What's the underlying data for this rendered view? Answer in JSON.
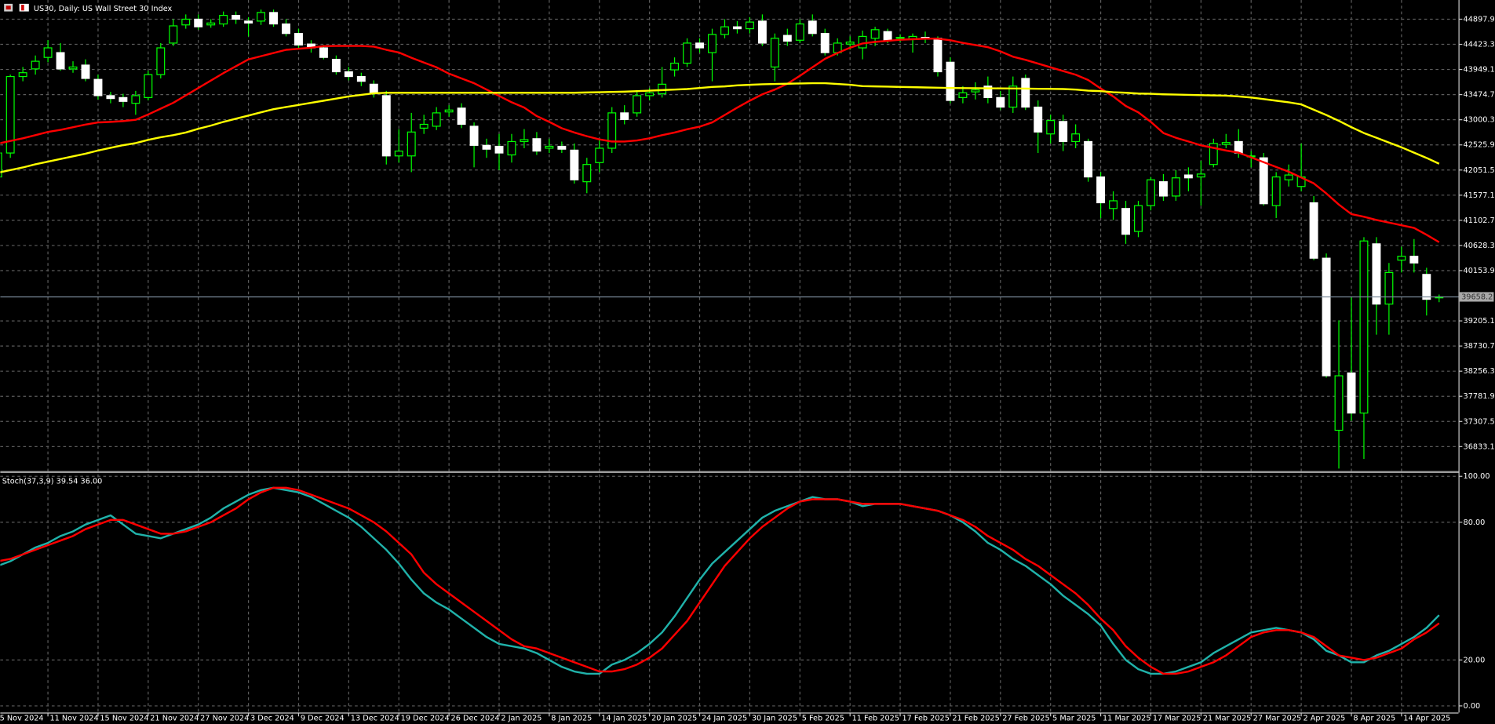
{
  "chart_data": [
    {
      "type": "candlestick",
      "title": "US30, Daily: US Wall Street 30 Index",
      "categories": [
        "5 Nov 2024",
        null,
        null,
        null,
        "11 Nov 2024",
        null,
        null,
        null,
        "15 Nov 2024",
        null,
        null,
        null,
        "21 Nov 2024",
        null,
        null,
        null,
        "27 Nov 2024",
        null,
        null,
        null,
        "3 Dec 2024",
        null,
        null,
        null,
        "9 Dec 2024",
        null,
        null,
        null,
        "13 Dec 2024",
        null,
        null,
        null,
        "19 Dec 2024",
        null,
        null,
        null,
        "26 Dec 2024",
        null,
        null,
        null,
        "2 Jan 2025",
        null,
        null,
        null,
        "8 Jan 2025",
        null,
        null,
        null,
        "14 Jan 2025",
        null,
        null,
        null,
        "20 Jan 2025",
        null,
        null,
        null,
        "24 Jan 2025",
        null,
        null,
        null,
        "30 Jan 2025",
        null,
        null,
        null,
        "5 Feb 2025",
        null,
        null,
        null,
        "11 Feb 2025",
        null,
        null,
        null,
        "17 Feb 2025",
        null,
        null,
        null,
        "21 Feb 2025",
        null,
        null,
        null,
        "27 Feb 2025",
        null,
        null,
        null,
        "5 Mar 2025",
        null,
        null,
        null,
        "11 Mar 2025",
        null,
        null,
        null,
        "17 Mar 2025",
        null,
        null,
        null,
        "21 Mar 2025",
        null,
        null,
        null,
        "27 Mar 2025",
        null,
        null,
        null,
        "2 Apr 2025",
        null,
        null,
        null,
        "8 Apr 2025",
        null,
        null,
        null,
        "14 Apr 2025",
        null,
        null,
        null
      ],
      "open": [
        41921,
        42373,
        43816,
        43960,
        44177,
        44267,
        43960,
        44032,
        43762,
        43455,
        43419,
        43311,
        43419,
        43852,
        44447,
        44790,
        44898,
        44790,
        44808,
        44970,
        44862,
        44862,
        45024,
        44808,
        44628,
        44429,
        44357,
        44141,
        43906,
        43816,
        43671,
        43455,
        42318,
        42318,
        42842,
        42878,
        43148,
        43220,
        42878,
        42517,
        42499,
        42337,
        42589,
        42643,
        42463,
        42499,
        42427,
        41831,
        42192,
        42463,
        43130,
        43130,
        43455,
        43491,
        43942,
        44068,
        44447,
        44267,
        44610,
        44754,
        44718,
        44862,
        43996,
        44592,
        44501,
        44862,
        44628,
        44267,
        44429,
        44357,
        44537,
        44664,
        44537,
        44519,
        44555,
        44537,
        44086,
        43419,
        43527,
        43635,
        43419,
        43239,
        43780,
        43239,
        42733,
        42968,
        42589,
        42589,
        41921,
        41326,
        41326,
        40893,
        41380,
        41831,
        41561,
        41958,
        41921,
        42156,
        42535,
        42589,
        42300,
        42282,
        41380,
        41867,
        41741,
        41434,
        40388,
        37141,
        38223,
        37466,
        40659,
        39522,
        40352,
        40424,
        40082,
        39640
      ],
      "high": [
        42463,
        43852,
        43996,
        44213,
        44501,
        44447,
        44104,
        44141,
        43852,
        43527,
        43491,
        43545,
        43924,
        44447,
        44898,
        44988,
        44988,
        44898,
        45043,
        45043,
        44934,
        45079,
        45079,
        44898,
        44718,
        44501,
        44411,
        44213,
        43996,
        43888,
        43744,
        43545,
        42824,
        43130,
        43094,
        43239,
        43275,
        43311,
        42950,
        42643,
        42733,
        42733,
        42824,
        42769,
        42643,
        42589,
        42553,
        42282,
        42643,
        43239,
        43275,
        43545,
        43599,
        43996,
        44177,
        44537,
        44537,
        44718,
        44898,
        44862,
        44934,
        44988,
        44628,
        44718,
        44898,
        44988,
        44718,
        44537,
        44573,
        44682,
        44754,
        44718,
        44610,
        44628,
        44664,
        44573,
        44177,
        43635,
        43708,
        43816,
        43545,
        43816,
        43852,
        43365,
        43094,
        43094,
        42914,
        42643,
        42012,
        41651,
        41471,
        41471,
        41921,
        41976,
        42048,
        42102,
        42228,
        42643,
        42733,
        42824,
        42409,
        42373,
        42012,
        42156,
        42553,
        41561,
        40478,
        39216,
        39667,
        40785,
        40785,
        40298,
        40605,
        40749,
        40208,
        39703
      ],
      "low": [
        41831,
        42282,
        43726,
        43852,
        44086,
        43924,
        43888,
        43726,
        43383,
        43311,
        43239,
        43094,
        43365,
        43780,
        44393,
        44718,
        44700,
        44736,
        44754,
        44808,
        44573,
        44790,
        44754,
        44573,
        44357,
        44267,
        44141,
        43852,
        43744,
        43635,
        43419,
        42156,
        42192,
        42012,
        42733,
        42806,
        43058,
        42842,
        42102,
        42282,
        42048,
        42192,
        42463,
        42337,
        42373,
        42373,
        41795,
        41615,
        42012,
        42373,
        42914,
        43058,
        43365,
        43419,
        43816,
        43996,
        44267,
        43726,
        44537,
        44628,
        44628,
        44393,
        43726,
        44393,
        44447,
        44573,
        44213,
        44213,
        44321,
        44141,
        44393,
        44447,
        44465,
        44267,
        44447,
        43816,
        43311,
        43311,
        43383,
        43311,
        43184,
        43130,
        43184,
        42373,
        42553,
        42409,
        42463,
        41831,
        41146,
        41110,
        40659,
        40785,
        41290,
        41471,
        41471,
        41651,
        41380,
        42102,
        42463,
        42282,
        42102,
        41380,
        41146,
        41741,
        41651,
        40352,
        38133,
        36419,
        37321,
        36600,
        38945,
        38945,
        40118,
        40118,
        39306,
        39558
      ],
      "close": [
        42373,
        43816,
        43888,
        44104,
        44357,
        43960,
        43996,
        43780,
        43455,
        43401,
        43347,
        43455,
        43852,
        44357,
        44772,
        44898,
        44754,
        44826,
        44970,
        44898,
        44826,
        45024,
        44808,
        44628,
        44411,
        44357,
        44177,
        43906,
        43816,
        43726,
        43491,
        42318,
        42409,
        42769,
        42914,
        43130,
        43184,
        42914,
        42517,
        42445,
        42373,
        42589,
        42625,
        42409,
        42499,
        42445,
        41867,
        42156,
        42463,
        43130,
        43004,
        43455,
        43509,
        43671,
        44068,
        44447,
        44357,
        44610,
        44754,
        44718,
        44844,
        44447,
        44537,
        44483,
        44808,
        44628,
        44267,
        44447,
        44465,
        44573,
        44700,
        44501,
        44555,
        44573,
        44537,
        43906,
        43365,
        43509,
        43563,
        43419,
        43239,
        43635,
        43239,
        42769,
        42986,
        42589,
        42733,
        41921,
        41434,
        41471,
        40839,
        41380,
        41867,
        41561,
        41904,
        41904,
        41976,
        42553,
        42571,
        42373,
        42318,
        41416,
        41921,
        41958,
        41921,
        40388,
        38169,
        38169,
        37466,
        40713,
        39522,
        40118,
        40424,
        40298,
        39612,
        39658.2
      ],
      "colors": {
        "up": "#00ff00",
        "down": "#ffffff",
        "wick": "#00ff00"
      },
      "overlays": [
        {
          "color": "#ff0000",
          "values": [
            42550,
            42600,
            42650,
            42710,
            42770,
            42810,
            42860,
            42910,
            42950,
            42960,
            42975,
            43000,
            43100,
            43210,
            43320,
            43460,
            43600,
            43740,
            43880,
            44010,
            44140,
            44200,
            44260,
            44320,
            44340,
            44360,
            44390,
            44393,
            44393,
            44393,
            44380,
            44320,
            44270,
            44170,
            44080,
            43990,
            43870,
            43780,
            43690,
            43570,
            43450,
            43330,
            43230,
            43070,
            42960,
            42840,
            42760,
            42690,
            42630,
            42590,
            42589,
            42610,
            42650,
            42710,
            42760,
            42820,
            42870,
            42950,
            43090,
            43230,
            43360,
            43480,
            43570,
            43680,
            43830,
            43990,
            44150,
            44260,
            44360,
            44440,
            44470,
            44490,
            44510,
            44520,
            44530,
            44530,
            44500,
            44450,
            44410,
            44370,
            44290,
            44190,
            44130,
            44060,
            43990,
            43920,
            43850,
            43750,
            43590,
            43440,
            43260,
            43140,
            42960,
            42750,
            42660,
            42590,
            42517,
            42470,
            42420,
            42380,
            42290,
            42200,
            42110,
            42020,
            41910,
            41800,
            41610,
            41400,
            41220,
            41170,
            41110,
            41060,
            41010,
            40960,
            40830,
            40690
          ]
        },
        {
          "color": "#ffff00",
          "values": [
            42000,
            42050,
            42100,
            42160,
            42210,
            42260,
            42310,
            42360,
            42420,
            42470,
            42520,
            42560,
            42620,
            42670,
            42710,
            42760,
            42830,
            42890,
            42960,
            43020,
            43080,
            43140,
            43200,
            43240,
            43280,
            43320,
            43360,
            43400,
            43440,
            43470,
            43500,
            43509,
            43510,
            43510,
            43510,
            43510,
            43510,
            43510,
            43510,
            43510,
            43510,
            43510,
            43510,
            43510,
            43510,
            43510,
            43510,
            43515,
            43520,
            43525,
            43530,
            43540,
            43550,
            43560,
            43570,
            43580,
            43600,
            43620,
            43630,
            43650,
            43660,
            43670,
            43675,
            43680,
            43685,
            43690,
            43690,
            43675,
            43660,
            43635,
            43630,
            43625,
            43620,
            43615,
            43610,
            43605,
            43600,
            43598,
            43596,
            43594,
            43592,
            43590,
            43588,
            43585,
            43583,
            43580,
            43570,
            43550,
            43540,
            43520,
            43510,
            43495,
            43490,
            43480,
            43475,
            43470,
            43465,
            43460,
            43455,
            43440,
            43420,
            43390,
            43360,
            43330,
            43290,
            43190,
            43090,
            42980,
            42860,
            42750,
            42660,
            42570,
            42480,
            42380,
            42280,
            42170
          ]
        }
      ],
      "last_price": 39658.2,
      "ylim": [
        36380,
        45260
      ],
      "yticks": [
        44897.9,
        44423.3,
        43949.1,
        43474.7,
        43000.3,
        42525.9,
        42051.5,
        41577.1,
        41102.7,
        40628.3,
        40153.9,
        39205.1,
        38730.7,
        38256.3,
        37781.9,
        37307.5,
        36833.1
      ],
      "grid": true
    },
    {
      "type": "line",
      "title": "Stoch(37,3,9) 39.54 36.00",
      "series": [
        {
          "color": "#20b2aa",
          "values": [
            61,
            63,
            66,
            69,
            71,
            74,
            76,
            79,
            81,
            83,
            79,
            75,
            74,
            73,
            75,
            77,
            79,
            82,
            86,
            89,
            92,
            94,
            95,
            94,
            93,
            91,
            88,
            85,
            82,
            78,
            73,
            68,
            62,
            55,
            49,
            45,
            42,
            38,
            34,
            30,
            27,
            26,
            25,
            23,
            20,
            17,
            15,
            14,
            14,
            18,
            20,
            23,
            27,
            32,
            39,
            47,
            55,
            62,
            67,
            72,
            77,
            82,
            85,
            87,
            89,
            91,
            90,
            90,
            89,
            87,
            88,
            88,
            88,
            87,
            86,
            85,
            83,
            80,
            76,
            71,
            68,
            64,
            61,
            57,
            53,
            48,
            44,
            40,
            35,
            27,
            20,
            16,
            14,
            14,
            15,
            17,
            19,
            23,
            26,
            29,
            32,
            33,
            34,
            33,
            32,
            29,
            24,
            22,
            19,
            19,
            22,
            24,
            27,
            30,
            34,
            39.54
          ]
        },
        {
          "color": "#ff0000",
          "values": [
            63,
            64,
            66,
            68,
            70,
            72,
            74,
            77,
            79,
            81,
            81,
            79,
            77,
            75,
            75,
            76,
            78,
            80,
            83,
            86,
            90,
            93,
            95,
            95,
            94,
            92,
            90,
            88,
            86,
            83,
            80,
            76,
            71,
            66,
            58,
            53,
            49,
            45,
            41,
            37,
            33,
            29,
            26,
            25,
            23,
            21,
            19,
            17,
            15,
            15,
            16,
            18,
            21,
            25,
            31,
            37,
            45,
            53,
            61,
            67,
            73,
            78,
            82,
            86,
            89,
            90,
            90,
            90,
            89,
            88,
            88,
            88,
            88,
            87,
            86,
            85,
            83,
            81,
            78,
            74,
            71,
            68,
            64,
            61,
            57,
            53,
            49,
            44,
            38,
            33,
            26,
            21,
            17,
            14,
            14,
            15,
            17,
            19,
            22,
            26,
            30,
            32,
            33,
            33,
            32,
            30,
            26,
            22,
            21,
            20,
            21,
            23,
            25,
            29,
            32,
            36
          ]
        }
      ],
      "ylim": [
        0,
        100
      ],
      "yticks": [
        {
          "value": 100,
          "label": "100.00"
        },
        {
          "value": 80,
          "label": "80.00"
        },
        {
          "value": 20,
          "label": "20.00"
        },
        {
          "value": 0,
          "label": "0.00"
        }
      ],
      "grid": true
    }
  ]
}
